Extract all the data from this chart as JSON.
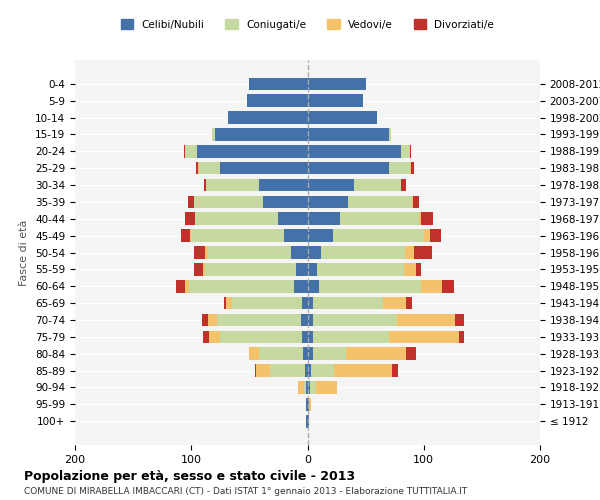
{
  "age_groups": [
    "100+",
    "95-99",
    "90-94",
    "85-89",
    "80-84",
    "75-79",
    "70-74",
    "65-69",
    "60-64",
    "55-59",
    "50-54",
    "45-49",
    "40-44",
    "35-39",
    "30-34",
    "25-29",
    "20-24",
    "15-19",
    "10-14",
    "5-9",
    "0-4"
  ],
  "birth_years": [
    "≤ 1912",
    "1913-1917",
    "1918-1922",
    "1923-1927",
    "1928-1932",
    "1933-1937",
    "1938-1942",
    "1943-1947",
    "1948-1952",
    "1953-1957",
    "1958-1962",
    "1963-1967",
    "1968-1972",
    "1973-1977",
    "1978-1982",
    "1983-1987",
    "1988-1992",
    "1993-1997",
    "1998-2002",
    "2003-2007",
    "2008-2012"
  ],
  "male_celibi": [
    1,
    1,
    1,
    2,
    4,
    5,
    6,
    5,
    12,
    10,
    14,
    20,
    25,
    38,
    42,
    75,
    95,
    80,
    68,
    52,
    50
  ],
  "male_coniugati": [
    0,
    0,
    2,
    30,
    38,
    70,
    72,
    60,
    90,
    78,
    72,
    80,
    72,
    60,
    45,
    18,
    10,
    2,
    0,
    0,
    0
  ],
  "male_vedovi": [
    0,
    0,
    5,
    12,
    8,
    10,
    8,
    5,
    3,
    2,
    2,
    1,
    0,
    0,
    0,
    1,
    0,
    0,
    0,
    0,
    0
  ],
  "male_divorziati": [
    0,
    0,
    0,
    1,
    0,
    5,
    5,
    2,
    8,
    8,
    10,
    8,
    8,
    5,
    2,
    2,
    1,
    0,
    0,
    0,
    0
  ],
  "female_celibi": [
    1,
    1,
    2,
    3,
    5,
    5,
    5,
    5,
    10,
    8,
    12,
    22,
    28,
    35,
    40,
    70,
    80,
    70,
    60,
    48,
    50
  ],
  "female_coniugati": [
    0,
    0,
    5,
    20,
    28,
    65,
    72,
    60,
    88,
    75,
    72,
    78,
    68,
    55,
    40,
    18,
    8,
    2,
    0,
    0,
    0
  ],
  "female_vedovi": [
    0,
    2,
    18,
    50,
    52,
    60,
    50,
    20,
    18,
    10,
    8,
    5,
    2,
    1,
    0,
    1,
    0,
    0,
    0,
    0,
    0
  ],
  "female_divorziati": [
    0,
    0,
    0,
    5,
    8,
    5,
    8,
    5,
    10,
    5,
    15,
    10,
    10,
    5,
    5,
    3,
    1,
    0,
    0,
    0,
    0
  ],
  "colors": {
    "celibi": "#4472a8",
    "coniugati": "#c5d9a0",
    "vedovi": "#f5c26c",
    "divorziati": "#c0312b"
  },
  "title": "Popolazione per età, sesso e stato civile - 2013",
  "subtitle": "COMUNE DI MIRABELLA IMBACCARI (CT) - Dati ISTAT 1° gennaio 2013 - Elaborazione TUTTITALIA.IT",
  "ylabel_left": "Fasce di età",
  "xlim": 200,
  "bg_color": "#f5f5f5",
  "grid_color": "#ffffff",
  "legend_labels": [
    "Celibi/Nubili",
    "Coniugati/e",
    "Vedovi/e",
    "Divorziati/e"
  ]
}
